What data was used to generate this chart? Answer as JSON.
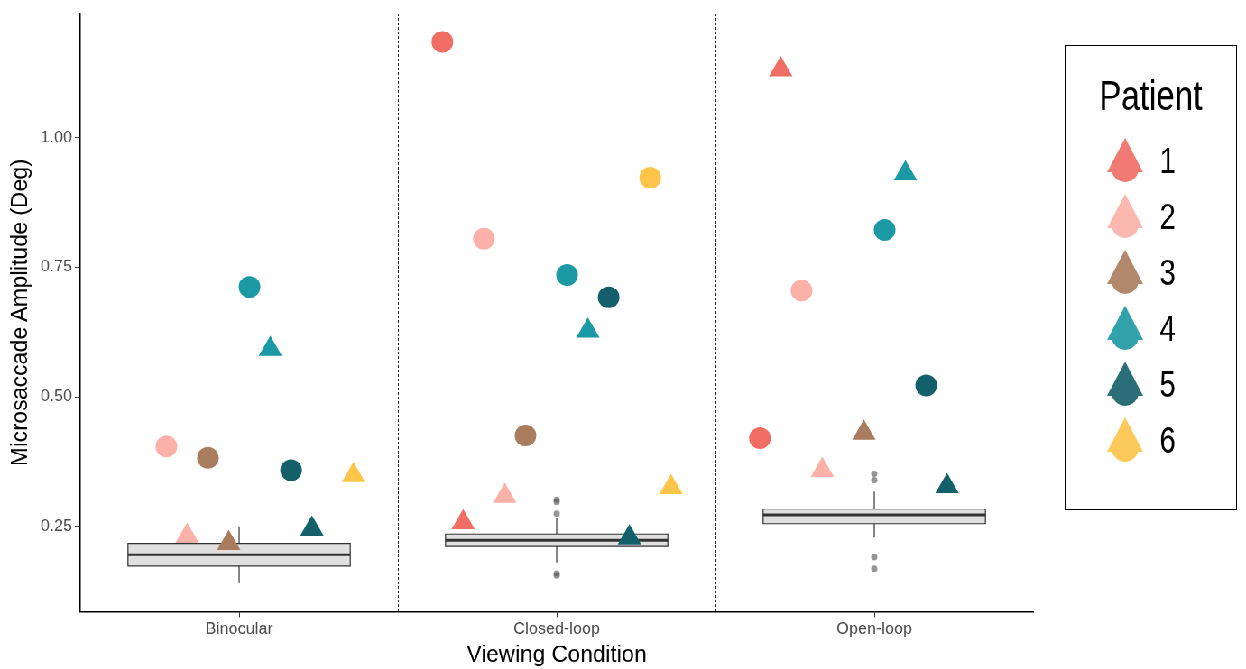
{
  "chart_data": {
    "type": "box",
    "xlabel": "Viewing Condition",
    "ylabel": "Microsaccade Amplitude (Deg)",
    "legend_title": "Patient",
    "legend": "right",
    "grid": false,
    "categories": [
      "Binocular",
      "Closed-loop",
      "Open-loop"
    ],
    "ylim": [
      0.085,
      1.24
    ],
    "yticks": [
      {
        "value": 0.25,
        "label": "0.25"
      },
      {
        "value": 0.5,
        "label": "0.50"
      },
      {
        "value": 0.75,
        "label": "0.75"
      },
      {
        "value": 1,
        "label": "1.00"
      }
    ],
    "boxes": [
      {
        "low": 0.14,
        "q1": 0.173,
        "median": 0.195,
        "q3": 0.217,
        "high": 0.25
      },
      {
        "low": 0.18,
        "q1": 0.211,
        "median": 0.223,
        "q3": 0.235,
        "high": 0.265,
        "outliers": [
          0.301,
          0.297,
          0.274,
          0.159,
          0.155
        ]
      },
      {
        "low": 0.228,
        "q1": 0.255,
        "median": 0.272,
        "q3": 0.283,
        "high": 0.317,
        "outliers": [
          0.351,
          0.339,
          0.19,
          0.168
        ]
      }
    ],
    "series": [
      {
        "type": "scatter",
        "name": "1",
        "color": "#f06d63",
        "marker": "circle",
        "x": [
          "Binocular",
          "Closed-loop",
          "Open-loop"
        ],
        "values": [
          null,
          1.185,
          0.42
        ]
      },
      {
        "type": "scatter",
        "color": "#f06d63",
        "marker": "triangle",
        "x": [
          "Binocular",
          "Closed-loop",
          "Open-loop"
        ],
        "values": [
          null,
          0.257,
          1.132
        ]
      },
      {
        "type": "scatter",
        "name": "2",
        "color": "#fbb1a8",
        "marker": "circle",
        "x": [
          "Binocular",
          "Closed-loop",
          "Open-loop"
        ],
        "values": [
          0.404,
          0.805,
          0.705
        ]
      },
      {
        "type": "scatter",
        "color": "#fbb1a8",
        "marker": "triangle",
        "x": [
          "Binocular",
          "Closed-loop",
          "Open-loop"
        ],
        "values": [
          0.231,
          0.308,
          0.358
        ]
      },
      {
        "type": "scatter",
        "name": "3",
        "color": "#a97c5d",
        "marker": "circle",
        "x": [
          "Binocular",
          "Closed-loop",
          "Open-loop"
        ],
        "values": [
          0.382,
          0.425,
          null
        ]
      },
      {
        "type": "scatter",
        "color": "#a97c5d",
        "marker": "triangle",
        "x": [
          "Binocular",
          "Closed-loop",
          "Open-loop"
        ],
        "values": [
          0.217,
          null,
          0.43
        ]
      },
      {
        "type": "scatter",
        "name": "4",
        "color": "#1b99a4",
        "marker": "circle",
        "x": [
          "Binocular",
          "Closed-loop",
          "Open-loop"
        ],
        "values": [
          0.712,
          0.735,
          0.822
        ]
      },
      {
        "type": "scatter",
        "color": "#1b99a4",
        "marker": "triangle",
        "x": [
          "Binocular",
          "Closed-loop",
          "Open-loop"
        ],
        "values": [
          0.592,
          0.627,
          0.931
        ]
      },
      {
        "type": "scatter",
        "name": "5",
        "color": "#13606a",
        "marker": "circle",
        "x": [
          "Binocular",
          "Closed-loop",
          "Open-loop"
        ],
        "values": [
          0.358,
          0.692,
          0.522
        ]
      },
      {
        "type": "scatter",
        "color": "#13606a",
        "marker": "triangle",
        "x": [
          "Binocular",
          "Closed-loop",
          "Open-loop"
        ],
        "values": [
          0.245,
          0.228,
          0.327
        ]
      },
      {
        "type": "scatter",
        "name": "6",
        "color": "#fdc44a",
        "marker": "circle",
        "x": [
          "Binocular",
          "Closed-loop",
          "Open-loop"
        ],
        "values": [
          null,
          0.923,
          null
        ]
      },
      {
        "type": "scatter",
        "color": "#fdc44a",
        "marker": "triangle",
        "x": [
          "Binocular",
          "Closed-loop",
          "Open-loop"
        ],
        "values": [
          0.348,
          0.325,
          null
        ]
      }
    ]
  }
}
